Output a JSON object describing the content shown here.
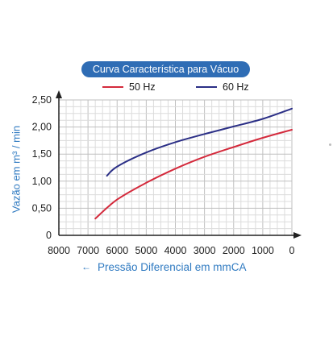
{
  "chart_data": {
    "type": "line",
    "title": "Curva Característica para Vácuo",
    "xlabel": "Pressão Diferencial em mmCA",
    "xlabel_arrow": "←",
    "ylabel": "Vazão em m³ / min",
    "x_reversed": true,
    "xlim": [
      0,
      8000
    ],
    "ylim": [
      0,
      2.5
    ],
    "x_ticks": [
      8000,
      7000,
      6000,
      5000,
      4000,
      3000,
      2000,
      1000,
      0
    ],
    "y_ticks": [
      "0",
      "0,50",
      "1,00",
      "1,50",
      "2,00",
      "2,50"
    ],
    "y_tick_values": [
      0,
      0.5,
      1.0,
      1.5,
      2.0,
      2.5
    ],
    "grid": true,
    "legend_position": "top",
    "series": [
      {
        "name": "50 Hz",
        "color": "#d42a3c",
        "points": [
          [
            6750,
            0.31
          ],
          [
            6000,
            0.66
          ],
          [
            5000,
            0.97
          ],
          [
            4000,
            1.23
          ],
          [
            3000,
            1.45
          ],
          [
            2000,
            1.63
          ],
          [
            1000,
            1.8
          ],
          [
            0,
            1.95
          ]
        ]
      },
      {
        "name": "60 Hz",
        "color": "#2b2f86",
        "points": [
          [
            6350,
            1.1
          ],
          [
            6000,
            1.27
          ],
          [
            5000,
            1.53
          ],
          [
            4000,
            1.72
          ],
          [
            3000,
            1.87
          ],
          [
            2000,
            2.01
          ],
          [
            1000,
            2.15
          ],
          [
            0,
            2.34
          ]
        ]
      }
    ]
  }
}
